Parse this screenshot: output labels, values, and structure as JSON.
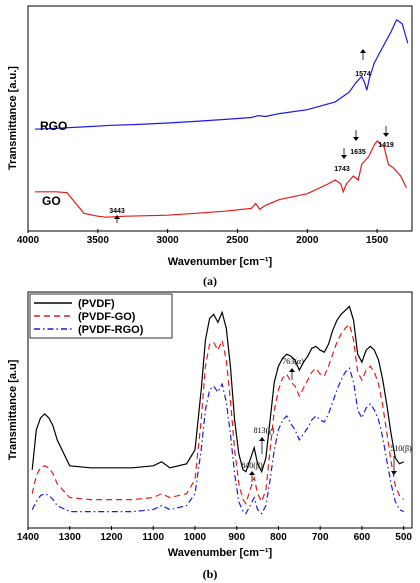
{
  "chart_data": [
    {
      "panel_label": "(a)",
      "type": "line",
      "xlabel": "Wavenumber [cm⁻¹]",
      "ylabel": "Transmittance [a.u.]",
      "xlim": [
        4000,
        1250
      ],
      "xticks": [
        4000,
        3500,
        3000,
        2500,
        2000,
        1500
      ],
      "grid": false,
      "series": [
        {
          "name": "RGO",
          "color": "#1a1ae6",
          "points": [
            [
              3950,
              0.36
            ],
            [
              3800,
              0.365
            ],
            [
              3600,
              0.372
            ],
            [
              3400,
              0.38
            ],
            [
              3200,
              0.385
            ],
            [
              3000,
              0.392
            ],
            [
              2800,
              0.4
            ],
            [
              2600,
              0.41
            ],
            [
              2400,
              0.42
            ],
            [
              2350,
              0.43
            ],
            [
              2300,
              0.425
            ],
            [
              2200,
              0.44
            ],
            [
              2000,
              0.46
            ],
            [
              1800,
              0.5
            ],
            [
              1700,
              0.55
            ],
            [
              1650,
              0.6
            ],
            [
              1610,
              0.63
            ],
            [
              1590,
              0.6
            ],
            [
              1574,
              0.56
            ],
            [
              1555,
              0.62
            ],
            [
              1520,
              0.7
            ],
            [
              1460,
              0.78
            ],
            [
              1400,
              0.86
            ],
            [
              1360,
              0.92
            ],
            [
              1320,
              0.9
            ],
            [
              1280,
              0.8
            ]
          ]
        },
        {
          "name": "GO",
          "color": "#e61a1a",
          "points": [
            [
              3950,
              0.04
            ],
            [
              3800,
              0.04
            ],
            [
              3720,
              0.035
            ],
            [
              3680,
              0.0
            ],
            [
              3600,
              -0.07
            ],
            [
              3500,
              -0.085
            ],
            [
              3443,
              -0.09
            ],
            [
              3300,
              -0.085
            ],
            [
              3000,
              -0.08
            ],
            [
              2800,
              -0.07
            ],
            [
              2600,
              -0.06
            ],
            [
              2400,
              -0.045
            ],
            [
              2370,
              -0.02
            ],
            [
              2340,
              -0.05
            ],
            [
              2300,
              -0.03
            ],
            [
              2200,
              0.0
            ],
            [
              2000,
              0.03
            ],
            [
              1850,
              0.08
            ],
            [
              1800,
              0.1
            ],
            [
              1760,
              0.08
            ],
            [
              1743,
              0.04
            ],
            [
              1720,
              0.08
            ],
            [
              1670,
              0.12
            ],
            [
              1635,
              0.1
            ],
            [
              1610,
              0.18
            ],
            [
              1560,
              0.22
            ],
            [
              1520,
              0.28
            ],
            [
              1500,
              0.3
            ],
            [
              1450,
              0.27
            ],
            [
              1419,
              0.18
            ],
            [
              1380,
              0.16
            ],
            [
              1330,
              0.12
            ],
            [
              1290,
              0.06
            ]
          ]
        }
      ],
      "annotations": [
        "1574",
        "1635",
        "1419",
        "1743",
        "3443"
      ]
    },
    {
      "panel_label": "(b)",
      "type": "line",
      "xlabel": "Wavenumber [cm⁻¹]",
      "ylabel": "Transmittance [a.u]",
      "xlim": [
        1400,
        480
      ],
      "xticks": [
        1400,
        1300,
        1200,
        1100,
        1000,
        900,
        800,
        700,
        600,
        500
      ],
      "grid": false,
      "legend_position": "top-left",
      "series": [
        {
          "name": "(PVDF)",
          "color": "#000000",
          "dash": "solid",
          "points": [
            [
              1390,
              0.3
            ],
            [
              1380,
              0.5
            ],
            [
              1370,
              0.56
            ],
            [
              1360,
              0.58
            ],
            [
              1350,
              0.56
            ],
            [
              1340,
              0.52
            ],
            [
              1330,
              0.45
            ],
            [
              1300,
              0.32
            ],
            [
              1250,
              0.31
            ],
            [
              1150,
              0.31
            ],
            [
              1100,
              0.32
            ],
            [
              1080,
              0.34
            ],
            [
              1060,
              0.31
            ],
            [
              1020,
              0.33
            ],
            [
              1000,
              0.4
            ],
            [
              985,
              0.7
            ],
            [
              975,
              0.95
            ],
            [
              965,
              1.06
            ],
            [
              955,
              1.08
            ],
            [
              945,
              1.04
            ],
            [
              935,
              1.09
            ],
            [
              925,
              1.01
            ],
            [
              915,
              0.82
            ],
            [
              905,
              0.55
            ],
            [
              895,
              0.38
            ],
            [
              885,
              0.3
            ],
            [
              878,
              0.29
            ],
            [
              868,
              0.35
            ],
            [
              858,
              0.41
            ],
            [
              850,
              0.33
            ],
            [
              840,
              0.29
            ],
            [
              830,
              0.36
            ],
            [
              820,
              0.55
            ],
            [
              810,
              0.74
            ],
            [
              800,
              0.82
            ],
            [
              790,
              0.86
            ],
            [
              780,
              0.88
            ],
            [
              770,
              0.87
            ],
            [
              760,
              0.85
            ],
            [
              750,
              0.8
            ],
            [
              740,
              0.84
            ],
            [
              730,
              0.87
            ],
            [
              720,
              0.91
            ],
            [
              710,
              0.92
            ],
            [
              700,
              0.9
            ],
            [
              690,
              0.89
            ],
            [
              680,
              0.93
            ],
            [
              670,
              1.0
            ],
            [
              660,
              1.05
            ],
            [
              650,
              1.08
            ],
            [
              640,
              1.1
            ],
            [
              630,
              1.12
            ],
            [
              620,
              1.05
            ],
            [
              610,
              0.88
            ],
            [
              600,
              0.84
            ],
            [
              590,
              0.9
            ],
            [
              580,
              0.92
            ],
            [
              570,
              0.9
            ],
            [
              560,
              0.85
            ],
            [
              550,
              0.75
            ],
            [
              540,
              0.62
            ],
            [
              530,
              0.48
            ],
            [
              520,
              0.36
            ],
            [
              510,
              0.33
            ],
            [
              500,
              0.34
            ]
          ]
        },
        {
          "name": "(PVDF-GO)",
          "color": "#e61a1a",
          "dash": "dashed",
          "points": [
            [
              1390,
              0.18
            ],
            [
              1380,
              0.27
            ],
            [
              1370,
              0.31
            ],
            [
              1360,
              0.32
            ],
            [
              1350,
              0.31
            ],
            [
              1340,
              0.28
            ],
            [
              1330,
              0.23
            ],
            [
              1300,
              0.16
            ],
            [
              1250,
              0.15
            ],
            [
              1150,
              0.15
            ],
            [
              1100,
              0.16
            ],
            [
              1080,
              0.18
            ],
            [
              1060,
              0.16
            ],
            [
              1020,
              0.18
            ],
            [
              1000,
              0.25
            ],
            [
              985,
              0.55
            ],
            [
              975,
              0.82
            ],
            [
              965,
              0.93
            ],
            [
              955,
              0.94
            ],
            [
              945,
              0.9
            ],
            [
              935,
              0.95
            ],
            [
              925,
              0.85
            ],
            [
              915,
              0.65
            ],
            [
              905,
              0.4
            ],
            [
              895,
              0.23
            ],
            [
              885,
              0.15
            ],
            [
              878,
              0.13
            ],
            [
              868,
              0.2
            ],
            [
              858,
              0.26
            ],
            [
              850,
              0.18
            ],
            [
              840,
              0.14
            ],
            [
              830,
              0.2
            ],
            [
              820,
              0.4
            ],
            [
              810,
              0.6
            ],
            [
              800,
              0.7
            ],
            [
              790,
              0.76
            ],
            [
              780,
              0.78
            ],
            [
              770,
              0.74
            ],
            [
              760,
              0.72
            ],
            [
              750,
              0.67
            ],
            [
              740,
              0.71
            ],
            [
              730,
              0.75
            ],
            [
              720,
              0.79
            ],
            [
              710,
              0.81
            ],
            [
              700,
              0.78
            ],
            [
              690,
              0.77
            ],
            [
              680,
              0.82
            ],
            [
              670,
              0.88
            ],
            [
              660,
              0.94
            ],
            [
              650,
              0.98
            ],
            [
              640,
              1.01
            ],
            [
              630,
              1.03
            ],
            [
              620,
              0.95
            ],
            [
              610,
              0.79
            ],
            [
              600,
              0.75
            ],
            [
              590,
              0.8
            ],
            [
              580,
              0.82
            ],
            [
              570,
              0.79
            ],
            [
              560,
              0.73
            ],
            [
              550,
              0.62
            ],
            [
              540,
              0.48
            ],
            [
              530,
              0.34
            ],
            [
              520,
              0.22
            ],
            [
              510,
              0.17
            ],
            [
              500,
              0.15
            ]
          ]
        },
        {
          "name": "(PVDF-RGO)",
          "color": "#1a1ae6",
          "dash": "dashdot",
          "points": [
            [
              1390,
              0.1
            ],
            [
              1380,
              0.14
            ],
            [
              1370,
              0.17
            ],
            [
              1360,
              0.18
            ],
            [
              1350,
              0.17
            ],
            [
              1340,
              0.15
            ],
            [
              1330,
              0.12
            ],
            [
              1300,
              0.09
            ],
            [
              1250,
              0.09
            ],
            [
              1150,
              0.09
            ],
            [
              1100,
              0.1
            ],
            [
              1080,
              0.12
            ],
            [
              1060,
              0.1
            ],
            [
              1020,
              0.12
            ],
            [
              1000,
              0.18
            ],
            [
              985,
              0.4
            ],
            [
              975,
              0.6
            ],
            [
              965,
              0.7
            ],
            [
              955,
              0.72
            ],
            [
              945,
              0.69
            ],
            [
              935,
              0.73
            ],
            [
              925,
              0.64
            ],
            [
              915,
              0.48
            ],
            [
              905,
              0.28
            ],
            [
              895,
              0.14
            ],
            [
              885,
              0.09
            ],
            [
              878,
              0.08
            ],
            [
              868,
              0.12
            ],
            [
              858,
              0.16
            ],
            [
              850,
              0.1
            ],
            [
              840,
              0.08
            ],
            [
              830,
              0.12
            ],
            [
              820,
              0.25
            ],
            [
              810,
              0.4
            ],
            [
              800,
              0.5
            ],
            [
              790,
              0.55
            ],
            [
              780,
              0.57
            ],
            [
              770,
              0.53
            ],
            [
              760,
              0.5
            ],
            [
              750,
              0.45
            ],
            [
              740,
              0.48
            ],
            [
              730,
              0.51
            ],
            [
              720,
              0.55
            ],
            [
              710,
              0.57
            ],
            [
              700,
              0.55
            ],
            [
              690,
              0.54
            ],
            [
              680,
              0.58
            ],
            [
              670,
              0.64
            ],
            [
              660,
              0.7
            ],
            [
              650,
              0.75
            ],
            [
              640,
              0.79
            ],
            [
              630,
              0.81
            ],
            [
              620,
              0.74
            ],
            [
              610,
              0.6
            ],
            [
              600,
              0.56
            ],
            [
              590,
              0.61
            ],
            [
              580,
              0.63
            ],
            [
              570,
              0.6
            ],
            [
              560,
              0.55
            ],
            [
              550,
              0.46
            ],
            [
              540,
              0.34
            ],
            [
              530,
              0.23
            ],
            [
              520,
              0.14
            ],
            [
              510,
              0.1
            ],
            [
              500,
              0.09
            ]
          ]
        }
      ],
      "annotations": [
        "763(α)",
        "813(γ)",
        "840(β)",
        "510(β)"
      ]
    }
  ]
}
